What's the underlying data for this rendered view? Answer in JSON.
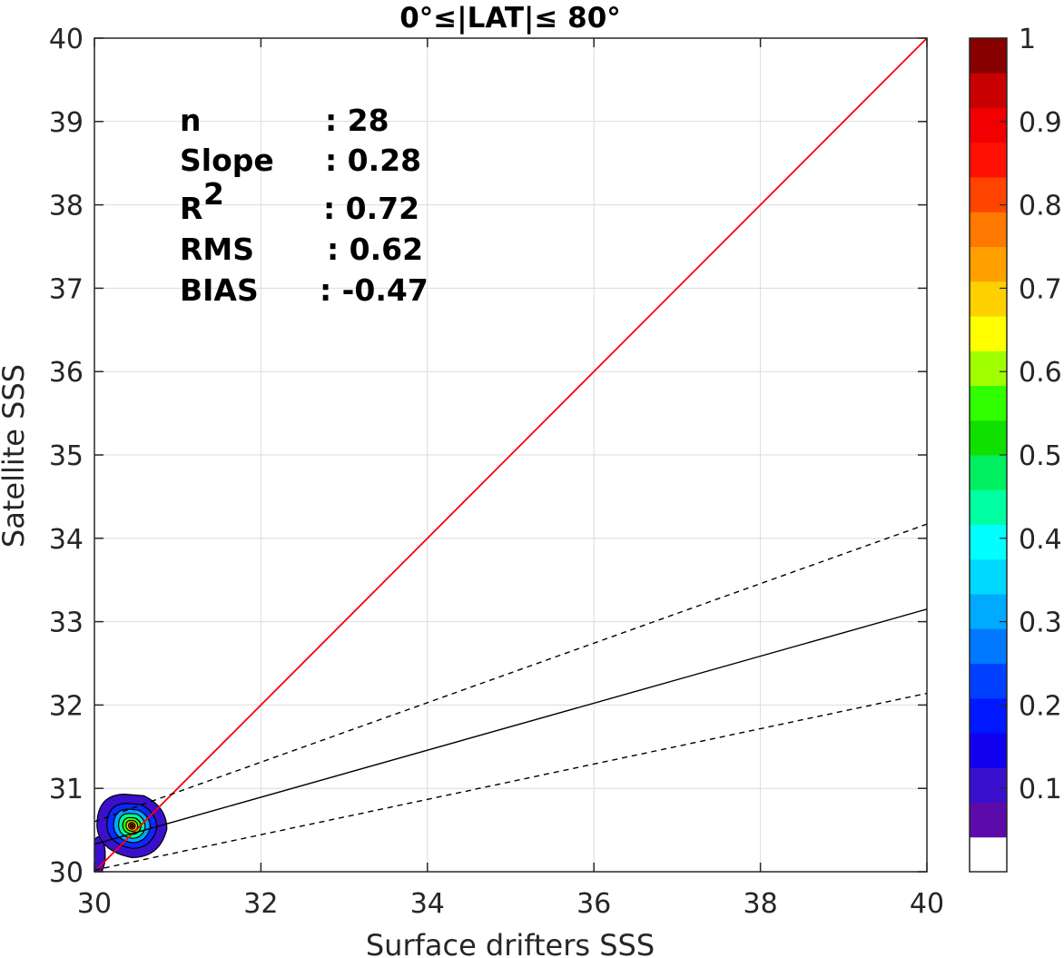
{
  "chart_data": {
    "type": "scatter",
    "title": "0°≤|LAT|≤ 80°",
    "xlabel": "Surface drifters SSS",
    "ylabel": "Satellite SSS",
    "xlim": [
      30,
      40
    ],
    "ylim": [
      30,
      40
    ],
    "x_ticks": [
      "30",
      "32",
      "34",
      "36",
      "38",
      "40"
    ],
    "y_ticks": [
      "30",
      "31",
      "32",
      "33",
      "34",
      "35",
      "36",
      "37",
      "38",
      "39",
      "40"
    ],
    "grid": true,
    "stats": [
      {
        "label": "n",
        "value": ": 28"
      },
      {
        "label": "Slope",
        "value": ": 0.28"
      },
      {
        "label": "R",
        "sup": "2",
        "value": ": 0.72"
      },
      {
        "label": "RMS",
        "value": ": 0.62"
      },
      {
        "label": "BIAS",
        "value": ": -0.47"
      }
    ],
    "lines": [
      {
        "kind": "one-to-one",
        "color": "#ff0000",
        "x": [
          30,
          40
        ],
        "y": [
          30,
          40
        ]
      },
      {
        "kind": "regression",
        "color": "#000000",
        "dashed": false,
        "x": [
          30,
          40
        ],
        "y": [
          30.33,
          33.15
        ]
      },
      {
        "kind": "upper-bound",
        "color": "#000000",
        "dashed": true,
        "x": [
          30,
          40
        ],
        "y": [
          30.6,
          34.17
        ]
      },
      {
        "kind": "lower-bound",
        "color": "#000000",
        "dashed": true,
        "x": [
          30,
          40
        ],
        "y": [
          30.02,
          32.14
        ]
      }
    ],
    "density": {
      "center": [
        30.45,
        30.55
      ],
      "levels": [
        {
          "level": 0.05,
          "rx": 0.42,
          "ry": 0.38,
          "color": "#3a10cc"
        },
        {
          "level": 0.2,
          "rx": 0.3,
          "ry": 0.27,
          "color": "#0a28ff"
        },
        {
          "level": 0.35,
          "rx": 0.22,
          "ry": 0.2,
          "color": "#00a8ff"
        },
        {
          "level": 0.45,
          "rx": 0.16,
          "ry": 0.15,
          "color": "#00ffa0"
        },
        {
          "level": 0.55,
          "rx": 0.11,
          "ry": 0.1,
          "color": "#30ff00"
        },
        {
          "level": 0.7,
          "rx": 0.07,
          "ry": 0.065,
          "color": "#ffd000"
        },
        {
          "level": 0.85,
          "rx": 0.04,
          "ry": 0.04,
          "color": "#ff4400"
        },
        {
          "level": 1.0,
          "rx": 0.02,
          "ry": 0.02,
          "color": "#880000"
        }
      ],
      "tail": {
        "x": 30.05,
        "y": 30.2,
        "rx": 0.08,
        "ry": 0.22,
        "color": "#3a10cc"
      }
    },
    "colorbar": {
      "ticks": [
        "0.1",
        "0.2",
        "0.3",
        "0.4",
        "0.5",
        "0.6",
        "0.7",
        "0.8",
        "0.9",
        "1"
      ],
      "colors": [
        "#ffffff",
        "#5d0aab",
        "#3a10cc",
        "#1000ee",
        "#0018ff",
        "#0040ff",
        "#0078ff",
        "#00aaff",
        "#00d8ff",
        "#00ffff",
        "#00ffa0",
        "#00f060",
        "#10e000",
        "#30ff00",
        "#a0ff00",
        "#ffff00",
        "#ffd000",
        "#ffa000",
        "#ff7800",
        "#ff4400",
        "#ff1000",
        "#f00000",
        "#c80000",
        "#880000"
      ]
    }
  }
}
